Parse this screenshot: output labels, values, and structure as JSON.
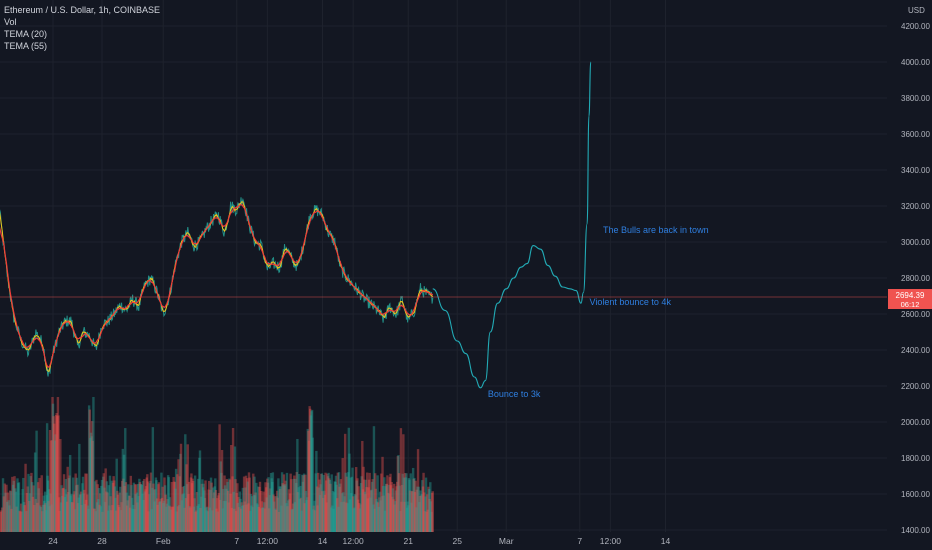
{
  "header": {
    "symbol_line": "Ethereum / U.S. Dollar, 1h, COINBASE",
    "indicators": [
      "Vol",
      "TEMA (20)",
      "TEMA (55)"
    ],
    "currency_label": "USD"
  },
  "price_badge": {
    "price": "2694.39",
    "countdown": "06:12",
    "color": "#f05350"
  },
  "colors": {
    "background": "#131722",
    "grid": "#1e222d",
    "price": "#26a69a",
    "tema20": "#f0c419",
    "tema55": "#ef3b3b",
    "projection": "#22aab5",
    "vol_up": "#26a69a",
    "vol_down": "#ef5350",
    "price_line": "#f05350",
    "annotation": "#2f7fe0"
  },
  "chart_data": {
    "type": "line",
    "title": "Ethereum / U.S. Dollar, 1h, COINBASE",
    "ylabel": "USD",
    "ylim": [
      1400,
      4300
    ],
    "y_ticks": [
      1400,
      1600,
      1800,
      2000,
      2200,
      2400,
      2600,
      2800,
      3000,
      3200,
      3400,
      3600,
      3800,
      4000,
      4200
    ],
    "y_tick_labels": [
      "1400.00",
      "1600.00",
      "1800.00",
      "2000.00",
      "2200.00",
      "2400.00",
      "2600.00",
      "2800.00",
      "3000.00",
      "3200.00",
      "3400.00",
      "3600.00",
      "3800.00",
      "4000.00",
      "4200.00"
    ],
    "x_ticks": [
      {
        "label": "24",
        "day": 0
      },
      {
        "label": "28",
        "day": 4
      },
      {
        "label": "Feb",
        "day": 9
      },
      {
        "label": "7",
        "day": 15
      },
      {
        "label": "12:00",
        "day": 17.5
      },
      {
        "label": "14",
        "day": 22
      },
      {
        "label": "12:00",
        "day": 24.5
      },
      {
        "label": "21",
        "day": 29
      },
      {
        "label": "25",
        "day": 33
      },
      {
        "label": "Mar",
        "day": 37
      },
      {
        "label": "7",
        "day": 43
      },
      {
        "label": "12:00",
        "day": 45.5
      },
      {
        "label": "14",
        "day": 50
      }
    ],
    "series": [
      {
        "name": "ETHUSD",
        "x": [
          -4.5,
          -3.8,
          -3.2,
          -2.6,
          -2,
          -1.4,
          -0.8,
          -0.4,
          0,
          0.5,
          1,
          1.5,
          2,
          2.5,
          3,
          3.5,
          4,
          4.5,
          5,
          5.5,
          6,
          6.5,
          7,
          7.5,
          8,
          8.5,
          9,
          9.5,
          10,
          10.5,
          11,
          11.5,
          12,
          12.5,
          13,
          13.5,
          14,
          14.5,
          15,
          15.5,
          16,
          16.5,
          17,
          17.5,
          18,
          18.5,
          19,
          19.5,
          20,
          20.5,
          21,
          21.5,
          22,
          22.5,
          23,
          23.5,
          24,
          24.5,
          25,
          25.5,
          26,
          26.5,
          27,
          27.5,
          28,
          28.5,
          29,
          29.5,
          30,
          30.5,
          31
        ],
        "y": [
          3250,
          2850,
          2580,
          2450,
          2380,
          2500,
          2430,
          2250,
          2380,
          2500,
          2560,
          2560,
          2420,
          2500,
          2480,
          2400,
          2540,
          2560,
          2600,
          2650,
          2620,
          2680,
          2640,
          2760,
          2800,
          2720,
          2600,
          2700,
          2880,
          3000,
          3050,
          2980,
          3000,
          3070,
          3120,
          3150,
          3050,
          3200,
          3180,
          3250,
          3100,
          3000,
          2980,
          2850,
          2880,
          2860,
          2980,
          2900,
          2860,
          3000,
          3150,
          3180,
          3150,
          3050,
          3000,
          2850,
          2800,
          2760,
          2720,
          2680,
          2650,
          2620,
          2570,
          2640,
          2600,
          2680,
          2560,
          2620,
          2740,
          2710,
          2690
        ]
      },
      {
        "name": "Projection",
        "x": [
          31,
          32,
          33,
          33.7,
          34.4,
          34.9,
          35.3,
          35.7,
          36.3,
          37,
          37.6,
          38.2,
          38.7,
          39.2,
          39.8,
          40.4,
          41,
          41.6,
          42.2,
          42.7,
          43.1,
          43.3,
          43.6,
          43.75,
          43.9
        ],
        "y": [
          2740,
          2620,
          2450,
          2380,
          2250,
          2190,
          2230,
          2500,
          2660,
          2740,
          2800,
          2860,
          2880,
          2980,
          2960,
          2870,
          2810,
          2750,
          2740,
          2730,
          2660,
          2720,
          3100,
          3700,
          4000
        ]
      }
    ],
    "annotations": [
      {
        "text": "Bounce to 3k",
        "x": 35.5,
        "y": 2140
      },
      {
        "text": "Violent bounce to 4k",
        "x": 43.8,
        "y": 2650
      },
      {
        "text": "The Bulls are back in town",
        "x": 44.9,
        "y": 3050
      }
    ],
    "current_price": 2694.39,
    "grid": true,
    "legend": "top-left"
  }
}
